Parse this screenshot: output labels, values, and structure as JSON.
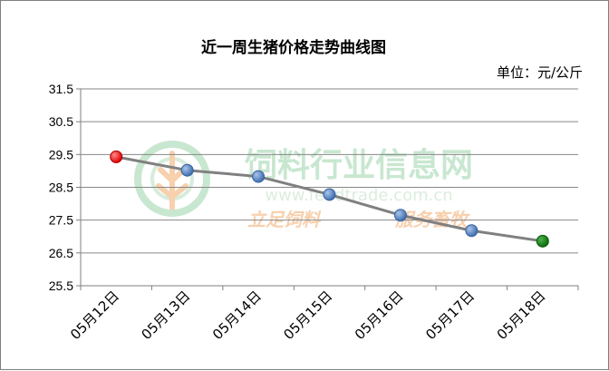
{
  "watermark": {
    "name_cn": "饲料行业信息网",
    "url": "www.feedtrade.com.cn",
    "slogan_left": "立足饲料",
    "slogan_right": "服务畜牧",
    "colors": {
      "green": "#bfe3c8",
      "orange": "#f6c8a0"
    }
  },
  "chart_data": {
    "type": "line",
    "title": "近一周生猪价格走势曲线图",
    "unit_label": "单位：元/公斤",
    "categories": [
      "05月12日",
      "05月13日",
      "05月14日",
      "05月15日",
      "05月16日",
      "05月17日",
      "05月18日"
    ],
    "values": [
      29.43,
      29.02,
      28.83,
      28.28,
      27.65,
      27.18,
      26.86
    ],
    "ylim": [
      25.5,
      31.5
    ],
    "yticks": [
      "25.5",
      "26.5",
      "27.5",
      "28.5",
      "29.5",
      "30.5",
      "31.5"
    ],
    "grid": true,
    "legend": "none",
    "colors": {
      "line": "#808080",
      "marker": "#4f81bd",
      "first_marker": "#ff0000",
      "last_marker": "#008000",
      "grid": "#878787"
    }
  }
}
